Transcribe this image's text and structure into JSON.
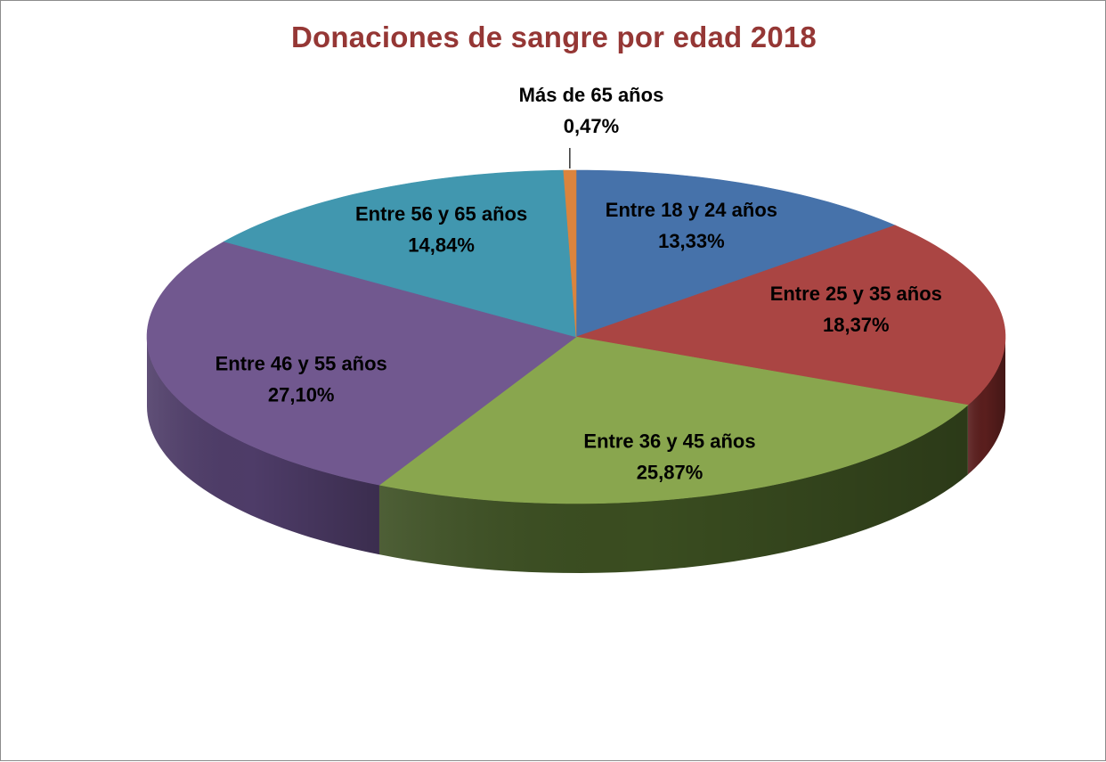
{
  "chart_data": {
    "type": "pie",
    "style": "3d",
    "title": "Donaciones de sangre por edad 2018",
    "categories": [
      "Entre 18 y 24 años",
      "Entre 25 y 35 años",
      "Entre 36 y 45 años",
      "Entre 46 y 55 años",
      "Entre 56 y 65 años",
      "Más de 65 años"
    ],
    "values": [
      13.33,
      18.37,
      25.87,
      27.1,
      14.84,
      0.47
    ],
    "value_labels": [
      "13,33%",
      "18,37%",
      "25,87%",
      "27,10%",
      "14,84%",
      "0,47%"
    ],
    "colors": [
      "#4672aa",
      "#aa4543",
      "#89a64e",
      "#71588f",
      "#4197af",
      "#db843d"
    ],
    "side_colors": [
      "#2c4a73",
      "#5a1e1d",
      "#3a4d20",
      "#4e3c68",
      "#2a6478",
      "#8a4e1e"
    ],
    "legend": "none",
    "data_labels": "category and percentage"
  }
}
